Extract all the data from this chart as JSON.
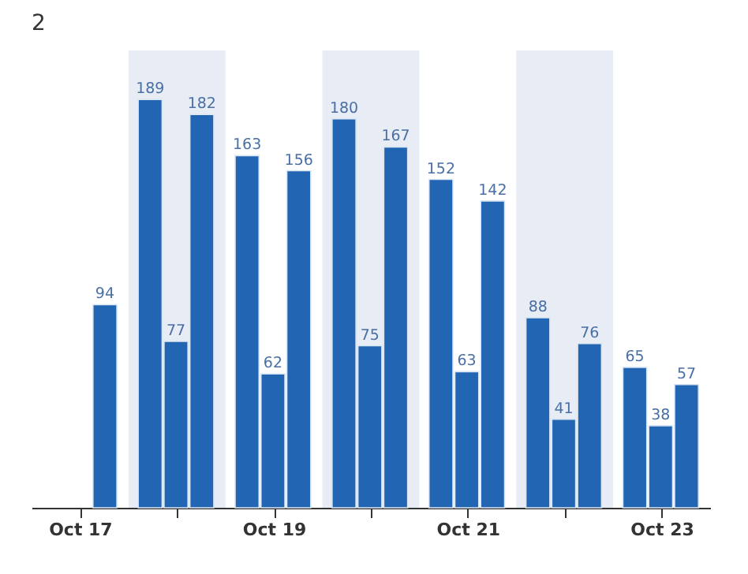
{
  "chart_data": {
    "type": "bar",
    "title": "2",
    "x": [
      "--10-17",
      "--10-18",
      "--10-19",
      "--10-20",
      "--10-21",
      "--10-22",
      "--10-23"
    ],
    "series": [
      {
        "color": "#2266b3",
        "values": [
          null,
          189,
          163,
          180,
          152,
          88,
          65
        ]
      },
      {
        "color": "#2266b3",
        "values": [
          null,
          77,
          62,
          75,
          63,
          41,
          38
        ]
      },
      {
        "color": "#2266b3",
        "values": [
          94,
          182,
          156,
          167,
          142,
          76,
          57
        ]
      }
    ],
    "xlim": [
      "--10-16T12:00",
      "--10-23T12:00"
    ],
    "xticks": [
      {
        "value": "--10-17",
        "label": "Oct 17"
      },
      {
        "value": "--10-18",
        "label": null
      },
      {
        "value": "--10-19",
        "label": "Oct 19"
      },
      {
        "value": "--10-20",
        "label": null
      },
      {
        "value": "--10-21",
        "label": "Oct 21"
      },
      {
        "value": "--10-22",
        "label": null
      },
      {
        "value": "--10-23",
        "label": "Oct 23"
      }
    ],
    "bands": [
      {
        "axis": "x",
        "from": "--10-17T12:00",
        "to": "--10-18T12:00",
        "color": "#e8edf5"
      },
      {
        "axis": "x",
        "from": "--10-19T12:00",
        "to": "--10-20T12:00",
        "color": "#e8edf5"
      },
      {
        "axis": "x",
        "from": "--10-21T12:00",
        "to": "--10-22T12:00",
        "color": "#e8edf5"
      }
    ],
    "data_labels": true,
    "grid": false,
    "tick_labels": "x"
  }
}
